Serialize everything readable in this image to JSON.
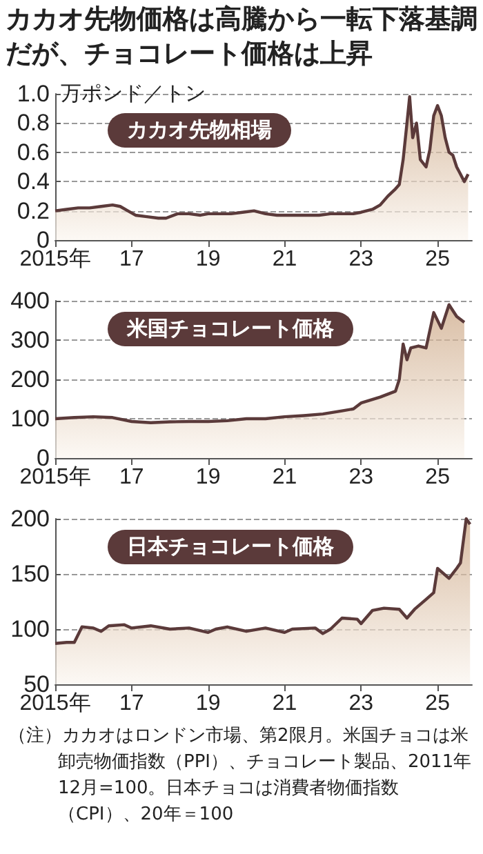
{
  "chart_data": [
    {
      "type": "area",
      "title": "カカオ先物価格は高騰から一転下落基調だが、チョコレート価格は上昇",
      "subtitle": "カカオ先物相場",
      "ylabel": "万ポンド／トン",
      "grid": "y",
      "marker": "none",
      "line_style": "solid",
      "xlim": [
        2015,
        2025.9
      ],
      "xticks": [
        {
          "value": 2015,
          "label": "2015年"
        },
        {
          "value": 2017,
          "label": "17"
        },
        {
          "value": 2019,
          "label": "19"
        },
        {
          "value": 2021,
          "label": "21"
        },
        {
          "value": 2023,
          "label": "23"
        },
        {
          "value": 2025,
          "label": "25"
        }
      ],
      "ylim": [
        0,
        1.0
      ],
      "yticks": [
        0,
        0.2,
        0.4,
        0.6,
        0.8,
        {
          "value": 1.0,
          "label": "1.0"
        }
      ],
      "x": [
        2015.0,
        2015.3,
        2015.6,
        2015.9,
        2016.2,
        2016.5,
        2016.7,
        2016.9,
        2017.1,
        2017.4,
        2017.7,
        2017.9,
        2018.2,
        2018.5,
        2018.8,
        2019.0,
        2019.3,
        2019.6,
        2019.9,
        2020.2,
        2020.5,
        2020.8,
        2021.0,
        2021.3,
        2021.6,
        2021.9,
        2022.2,
        2022.5,
        2022.8,
        2023.0,
        2023.3,
        2023.5,
        2023.7,
        2023.9,
        2024.0,
        2024.1,
        2024.2,
        2024.27,
        2024.35,
        2024.45,
        2024.55,
        2024.7,
        2024.8,
        2024.9,
        2025.0,
        2025.1,
        2025.2,
        2025.3,
        2025.4,
        2025.5,
        2025.6,
        2025.7,
        2025.8
      ],
      "series": [
        {
          "color": "#5b3a3a",
          "values": [
            0.2,
            0.21,
            0.22,
            0.22,
            0.23,
            0.24,
            0.23,
            0.2,
            0.17,
            0.16,
            0.15,
            0.15,
            0.18,
            0.18,
            0.17,
            0.18,
            0.18,
            0.18,
            0.19,
            0.2,
            0.18,
            0.17,
            0.17,
            0.17,
            0.17,
            0.17,
            0.18,
            0.18,
            0.18,
            0.19,
            0.21,
            0.24,
            0.3,
            0.35,
            0.38,
            0.55,
            0.8,
            0.98,
            0.7,
            0.8,
            0.55,
            0.5,
            0.62,
            0.85,
            0.92,
            0.85,
            0.7,
            0.6,
            0.58,
            0.5,
            0.45,
            0.4,
            0.45
          ]
        }
      ]
    },
    {
      "type": "area",
      "title": "米国チョコレート価格",
      "grid": "y",
      "marker": "none",
      "line_style": "solid",
      "xlim": [
        2015,
        2025.9
      ],
      "xticks": [
        {
          "value": 2015,
          "label": "2015年"
        },
        {
          "value": 2017,
          "label": "17"
        },
        {
          "value": 2019,
          "label": "19"
        },
        {
          "value": 2021,
          "label": "21"
        },
        {
          "value": 2023,
          "label": "23"
        },
        {
          "value": 2025,
          "label": "25"
        }
      ],
      "ylim": [
        0,
        400
      ],
      "yticks": [
        0,
        100,
        200,
        300,
        400
      ],
      "x": [
        2015.0,
        2015.5,
        2016.0,
        2016.5,
        2017.0,
        2017.5,
        2018.0,
        2018.5,
        2019.0,
        2019.5,
        2020.0,
        2020.5,
        2021.0,
        2021.5,
        2022.0,
        2022.5,
        2022.8,
        2023.0,
        2023.5,
        2023.9,
        2024.0,
        2024.1,
        2024.2,
        2024.3,
        2024.5,
        2024.7,
        2024.9,
        2025.1,
        2025.3,
        2025.5,
        2025.7
      ],
      "series": [
        {
          "color": "#5b3a3a",
          "values": [
            100,
            103,
            105,
            103,
            93,
            90,
            92,
            93,
            93,
            95,
            100,
            100,
            105,
            108,
            112,
            120,
            125,
            140,
            155,
            170,
            200,
            290,
            250,
            280,
            285,
            280,
            370,
            330,
            390,
            360,
            345
          ]
        }
      ]
    },
    {
      "type": "area",
      "title": "日本チョコレート価格",
      "grid": "y",
      "marker": "none",
      "line_style": "solid",
      "xlim": [
        2015,
        2025.9
      ],
      "xticks": [
        {
          "value": 2015,
          "label": "2015年"
        },
        {
          "value": 2017,
          "label": "17"
        },
        {
          "value": 2019,
          "label": "19"
        },
        {
          "value": 2021,
          "label": "21"
        },
        {
          "value": 2023,
          "label": "23"
        },
        {
          "value": 2025,
          "label": "25"
        }
      ],
      "ylim": [
        50,
        200
      ],
      "yticks": [
        50,
        100,
        150,
        200
      ],
      "x": [
        2015.0,
        2015.3,
        2015.5,
        2015.7,
        2016.0,
        2016.2,
        2016.4,
        2016.8,
        2017.0,
        2017.5,
        2018.0,
        2018.5,
        2019.0,
        2019.2,
        2019.5,
        2020.0,
        2020.5,
        2021.0,
        2021.2,
        2021.8,
        2022.0,
        2022.2,
        2022.5,
        2022.9,
        2023.0,
        2023.3,
        2023.6,
        2024.0,
        2024.2,
        2024.4,
        2024.7,
        2024.9,
        2025.0,
        2025.3,
        2025.5,
        2025.6,
        2025.75,
        2025.85
      ],
      "series": [
        {
          "color": "#5b3a3a",
          "values": [
            87,
            88,
            88,
            102,
            101,
            98,
            103,
            104,
            101,
            103,
            100,
            101,
            97,
            100,
            102,
            98,
            101,
            97,
            100,
            101,
            96,
            100,
            110,
            109,
            105,
            117,
            119,
            118,
            110,
            118,
            127,
            133,
            155,
            146,
            155,
            160,
            200,
            195
          ]
        }
      ],
      "annotations": [
        "（注）カカオはロンドン市場、第2限月。米国チョコは米卸売物価指数（PPI）、チョコレート製品、2011年12月=100。日本チョコは消費者物価指数（CPI）、20年＝100"
      ]
    }
  ]
}
